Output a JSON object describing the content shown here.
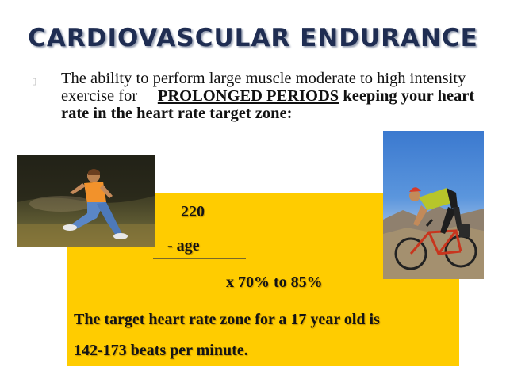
{
  "slide": {
    "title": "CARDIOVASCULAR ENDURANCE",
    "definition": {
      "part1": "The ability to perform large muscle moderate to high intensity exercise for",
      "emphasis": "PROLONGED PERIODS",
      "part2": "keeping your heart rate in the heart rate target zone:"
    },
    "formula": {
      "line1": "220",
      "line2": "- age",
      "line3": "x  70%  to 85%",
      "line4": "The target heart rate zone for a 17 year old is",
      "line5": "142-173 beats per minute."
    },
    "colors": {
      "title": "#1f2d52",
      "box": "#ffcc00"
    }
  }
}
